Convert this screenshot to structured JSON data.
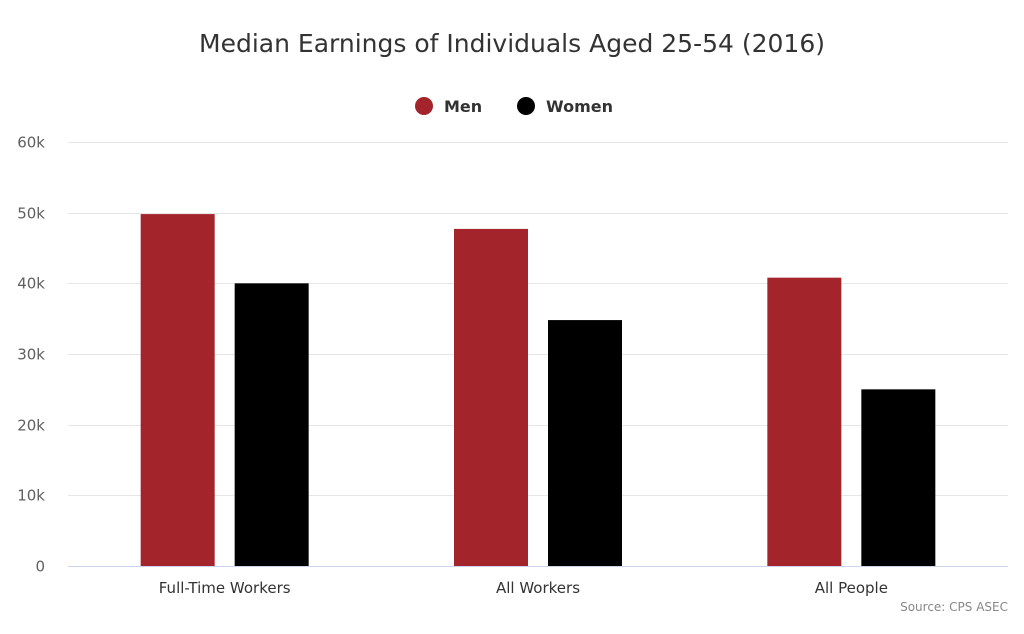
{
  "chart_data": {
    "type": "bar",
    "title": "Median Earnings of Individuals Aged 25-54 (2016)",
    "categories": [
      "Full-Time Workers",
      "All Workers",
      "All People"
    ],
    "series": [
      {
        "name": "Men",
        "values": [
          49800,
          47700,
          40800
        ],
        "color": "#a3242b"
      },
      {
        "name": "Women",
        "values": [
          40000,
          34800,
          25000
        ],
        "color": "#000000"
      }
    ],
    "ylim": [
      0,
      60000
    ],
    "yticks": [
      0,
      10000,
      20000,
      30000,
      40000,
      50000,
      60000
    ],
    "ytick_labels": [
      "0",
      "10k",
      "20k",
      "30k",
      "40k",
      "50k",
      "60k"
    ],
    "grid": true,
    "legend_position": "top-center",
    "credit": "Source: CPS ASEC"
  }
}
